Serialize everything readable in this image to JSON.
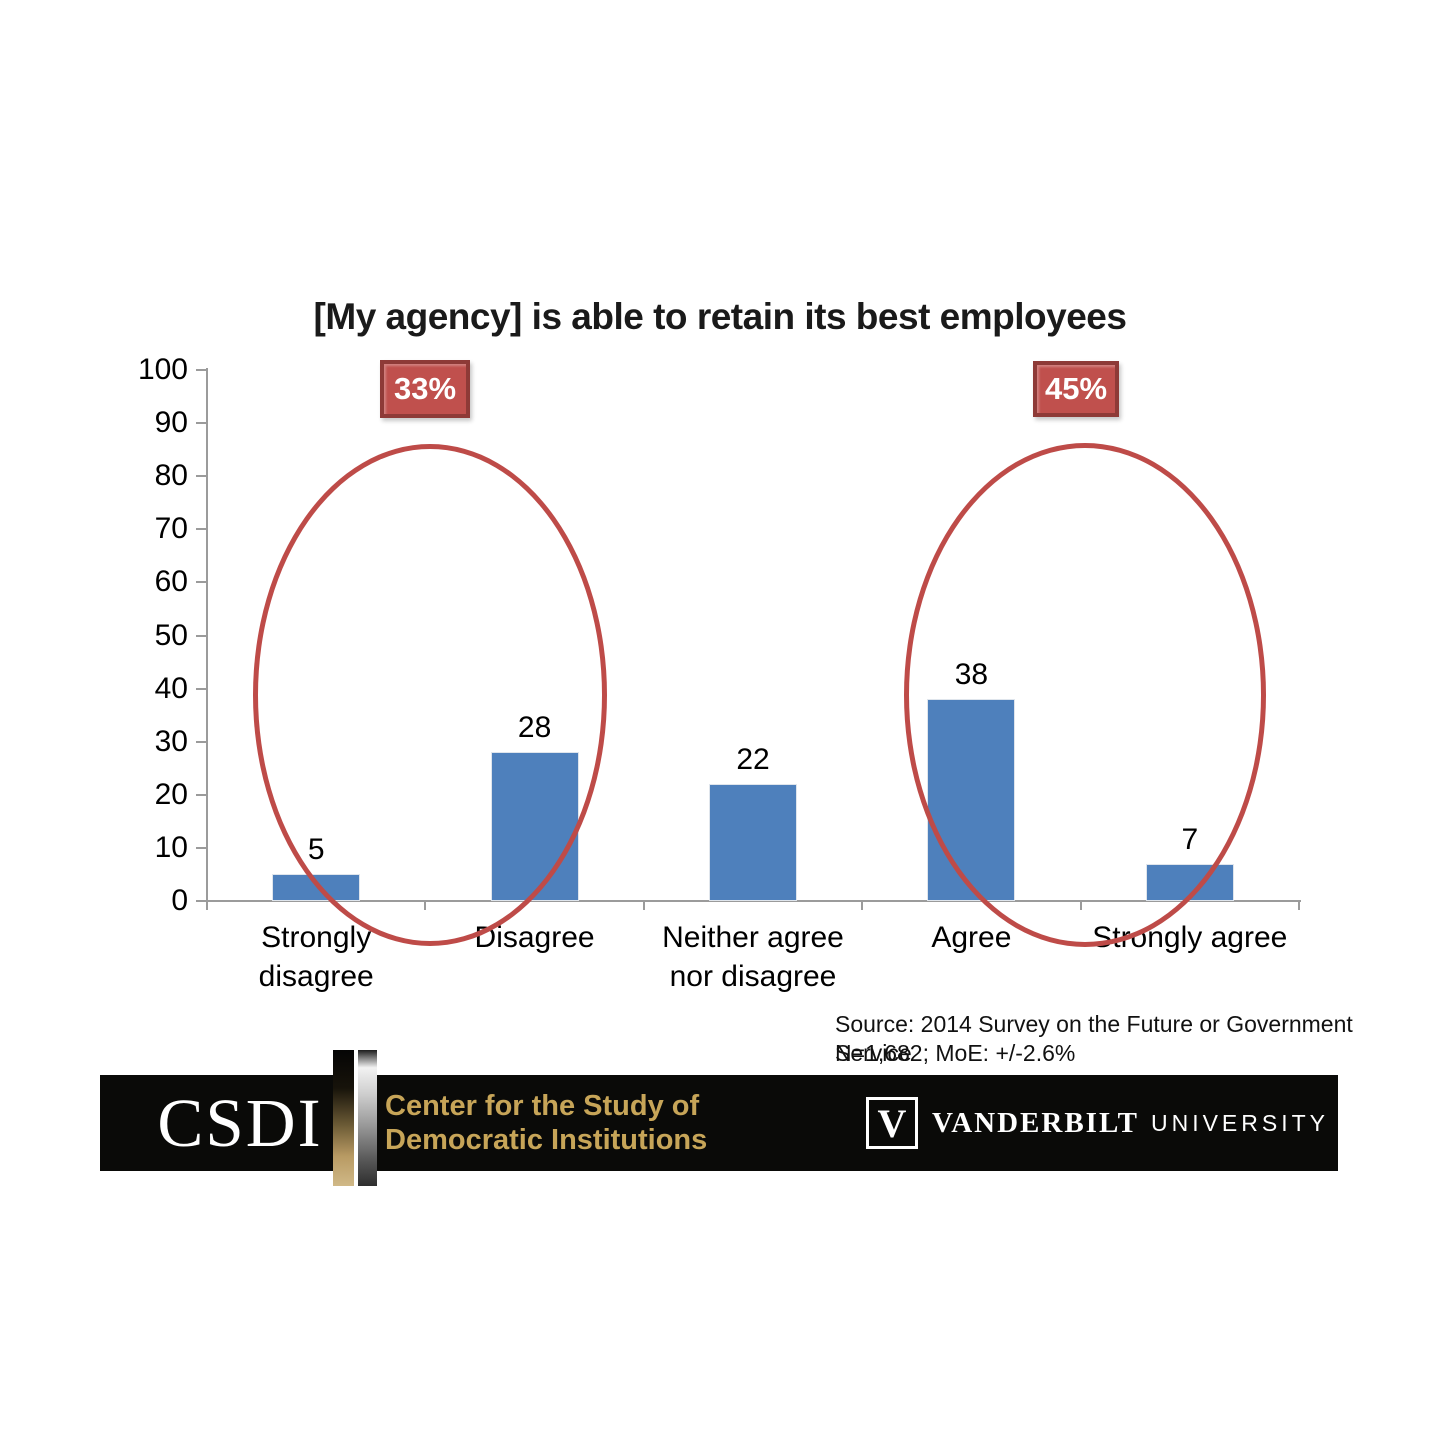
{
  "chart_data": {
    "type": "bar",
    "title": "[My agency] is able to retain its best employees",
    "categories": [
      "Strongly disagree",
      "Disagree",
      "Neither agree nor disagree",
      "Agree",
      "Strongly agree"
    ],
    "values": [
      5,
      28,
      22,
      38,
      7
    ],
    "xlabel": "",
    "ylabel": "",
    "ylim": [
      0,
      100
    ],
    "ytick_step": 10,
    "grid": false,
    "legend": false,
    "bar_color": "#4E80BC",
    "annotation_color": "#C0504D",
    "annotations": [
      {
        "label": "33%",
        "covers": [
          "Strongly disagree",
          "Disagree"
        ]
      },
      {
        "label": "45%",
        "covers": [
          "Agree",
          "Strongly agree"
        ]
      }
    ]
  },
  "source": {
    "line1": "Source: 2014 Survey on the Future or Government Service",
    "line2": "N=1,682; MoE: +/-2.6%"
  },
  "footer": {
    "csdi_acronym": "CSDI",
    "csdi_name_line1": "Center for the Study of",
    "csdi_name_line2": "Democratic Institutions",
    "vanderbilt_v": "V",
    "vanderbilt_name": "VANDERBILT",
    "vanderbilt_suffix": "UNIVERSITY",
    "gold_color": "#C7A558"
  }
}
